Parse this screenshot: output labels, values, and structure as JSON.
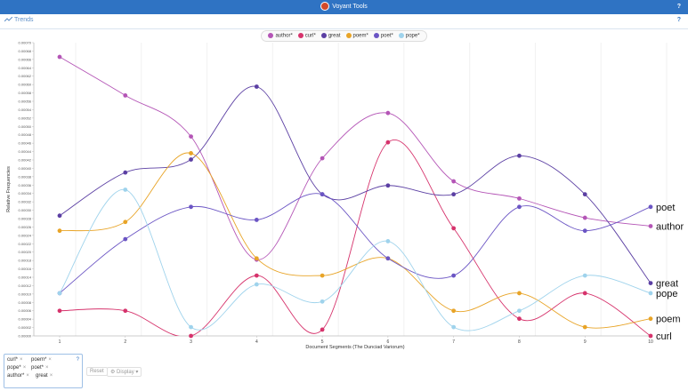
{
  "app": {
    "title": "Voyant Tools",
    "help": "?"
  },
  "panel": {
    "title": "Trends",
    "help": "?"
  },
  "chart_data": {
    "type": "line",
    "xlabel": "Document Segments (The Dunciad Variorum)",
    "ylabel": "Relative Frequencies",
    "x": [
      1,
      2,
      3,
      4,
      5,
      6,
      7,
      8,
      9,
      10
    ],
    "ylim": [
      0,
      0.0007
    ],
    "yticks": [
      "0.00000",
      "0.00002",
      "0.00004",
      "0.00006",
      "0.00008",
      "0.00010",
      "0.00012",
      "0.00014",
      "0.00016",
      "0.00018",
      "0.00020",
      "0.00022",
      "0.00024",
      "0.00026",
      "0.00028",
      "0.00030",
      "0.00032",
      "0.00034",
      "0.00036",
      "0.00038",
      "0.00040",
      "0.00042",
      "0.00044",
      "0.00046",
      "0.00048",
      "0.00050",
      "0.00052",
      "0.00054",
      "0.00056",
      "0.00058",
      "0.00060",
      "0.00062",
      "0.00064",
      "0.00066",
      "0.00068",
      "0.00070"
    ],
    "grid": false,
    "legend": "top-center",
    "series": [
      {
        "name": "author*",
        "color": "#b455b6",
        "values": [
          0.000666,
          0.000574,
          0.000476,
          0.000182,
          0.000424,
          0.000532,
          0.000369,
          0.000328,
          0.000282,
          0.000262
        ],
        "end_label": "author"
      },
      {
        "name": "curl*",
        "color": "#d6336c",
        "values": [
          6e-05,
          6e-05,
          0.0,
          0.000144,
          1.5e-05,
          0.000462,
          0.000257,
          4.1e-05,
          0.000102,
          0.0
        ],
        "end_label": "curl"
      },
      {
        "name": "great",
        "color": "#5b3fa3",
        "values": [
          0.000287,
          0.00039,
          0.000421,
          0.000595,
          0.000338,
          0.000359,
          0.000338,
          0.00043,
          0.000338,
          0.000126
        ],
        "end_label": "great"
      },
      {
        "name": "poem*",
        "color": "#e8a427",
        "values": [
          0.000251,
          0.000272,
          0.000436,
          0.000185,
          0.000144,
          0.000185,
          6e-05,
          0.000102,
          2.1e-05,
          4.1e-05
        ],
        "end_label": "poem"
      },
      {
        "name": "poet*",
        "color": "#6b55c4",
        "values": [
          0.000102,
          0.000231,
          0.000308,
          0.000277,
          0.000338,
          0.000185,
          0.000144,
          0.000308,
          0.000251,
          0.000308
        ],
        "end_label": "poet"
      },
      {
        "name": "pope*",
        "color": "#9fd3ec",
        "values": [
          0.000102,
          0.000349,
          2.1e-05,
          0.000123,
          8.2e-05,
          0.000226,
          2.1e-05,
          6e-05,
          0.000144,
          0.000102
        ],
        "end_label": "pope"
      }
    ]
  },
  "controls": {
    "tags": [
      "curl*",
      "poem*",
      "pope*",
      "poet*",
      "author*",
      "great"
    ],
    "reset_label": "Reset",
    "display_label": "Display",
    "help": "?"
  }
}
